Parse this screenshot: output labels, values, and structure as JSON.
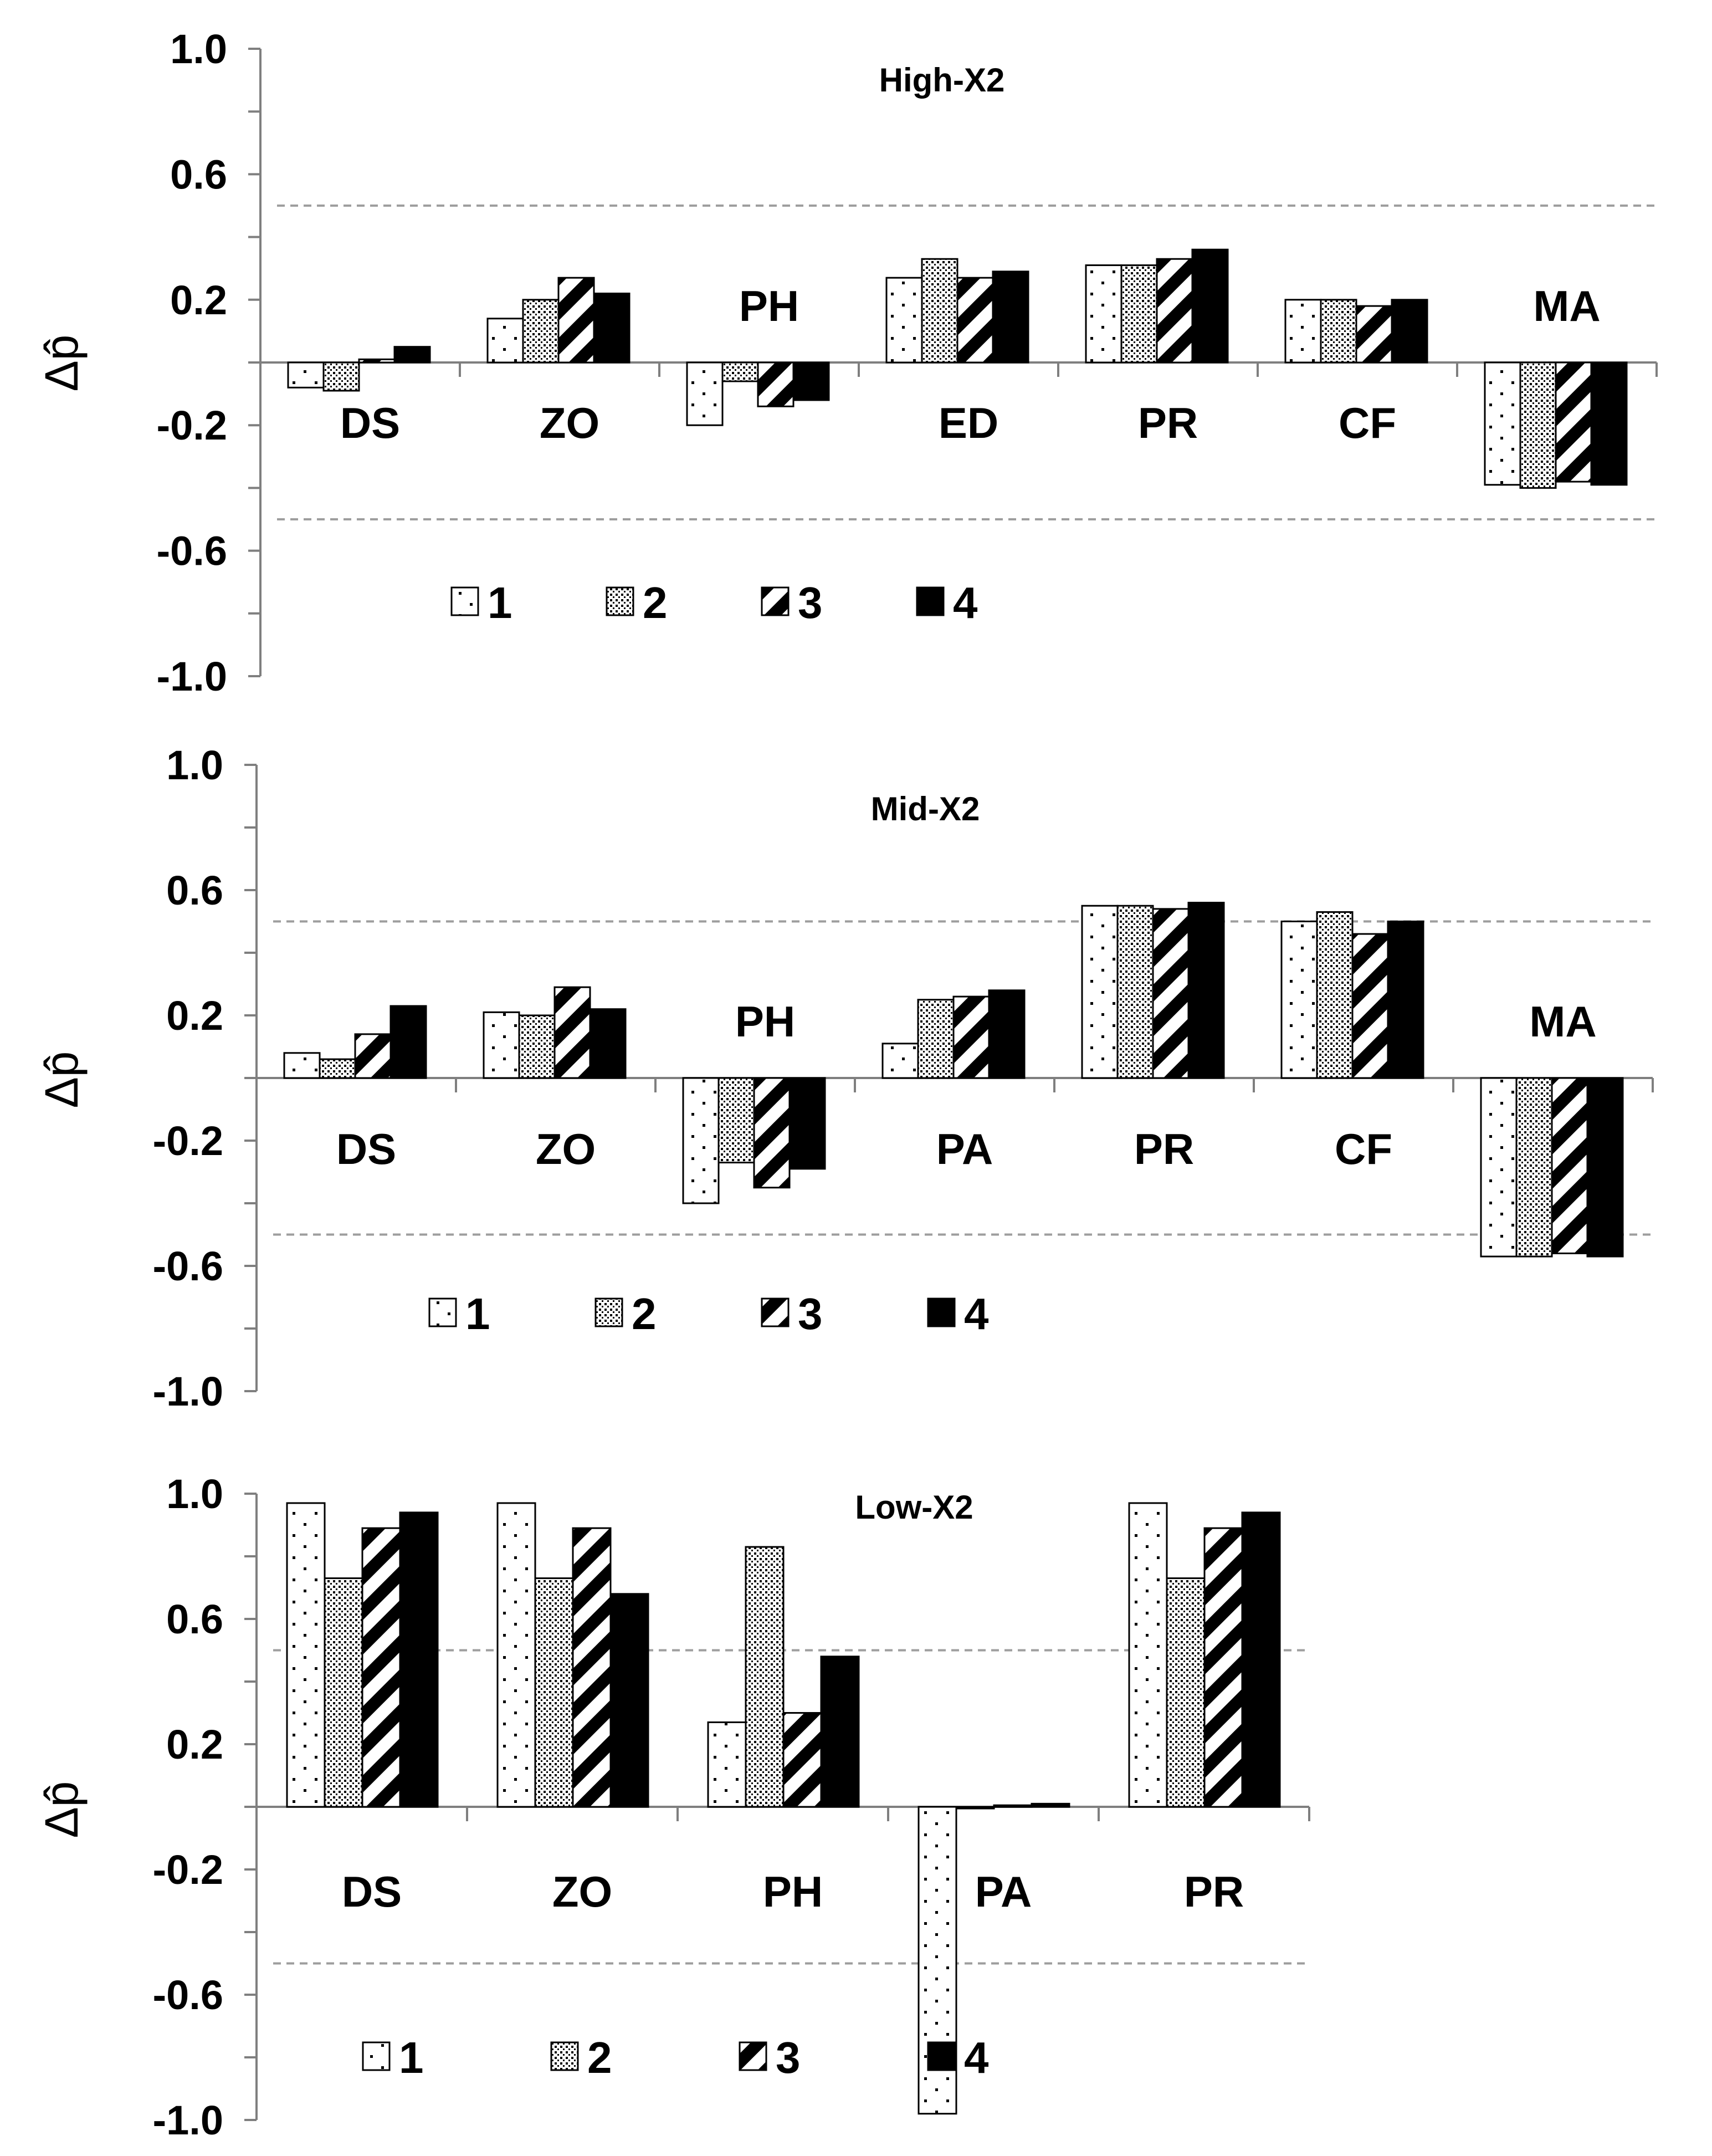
{
  "figure": {
    "ylabel": "Δp̂",
    "legend_series": [
      "1",
      "2",
      "3",
      "4"
    ],
    "colors": {
      "axis": "#7f7f7f",
      "reference_line": "#9e9e9e",
      "bar_outline": "#000000",
      "solid_fill": "#000000"
    }
  },
  "chart_data": [
    {
      "type": "bar",
      "title": "High-X2",
      "ylabel": "Δp̂",
      "ylim": [
        -1.0,
        1.0
      ],
      "yticks": [
        "1.0",
        "0.6",
        "0.2",
        "-0.2",
        "-0.6",
        "-1.0"
      ],
      "reference_lines": [
        0.5,
        -0.5
      ],
      "categories": [
        "DS",
        "ZO",
        "PH",
        "ED",
        "PR",
        "CF",
        "MA"
      ],
      "series": [
        {
          "name": "1",
          "pattern": "sparse-dots",
          "values": [
            -0.08,
            0.14,
            -0.2,
            0.27,
            0.31,
            0.2,
            -0.39
          ]
        },
        {
          "name": "2",
          "pattern": "dense-dots",
          "values": [
            -0.09,
            0.2,
            -0.06,
            0.33,
            0.31,
            0.2,
            -0.4
          ]
        },
        {
          "name": "3",
          "pattern": "diagonal-stripes",
          "values": [
            0.01,
            0.27,
            -0.14,
            0.27,
            0.33,
            0.18,
            -0.38
          ]
        },
        {
          "name": "4",
          "pattern": "solid",
          "values": [
            0.05,
            0.22,
            -0.12,
            0.29,
            0.36,
            0.2,
            -0.39
          ]
        }
      ],
      "legend": "bottom-left"
    },
    {
      "type": "bar",
      "title": "Mid-X2",
      "ylabel": "Δp̂",
      "ylim": [
        -1.0,
        1.0
      ],
      "yticks": [
        "1.0",
        "0.6",
        "0.2",
        "-0.2",
        "-0.6",
        "-1.0"
      ],
      "reference_lines": [
        0.5,
        -0.5
      ],
      "categories": [
        "DS",
        "ZO",
        "PH",
        "PA",
        "PR",
        "CF",
        "MA"
      ],
      "series": [
        {
          "name": "1",
          "pattern": "sparse-dots",
          "values": [
            0.08,
            0.21,
            -0.4,
            0.11,
            0.55,
            0.5,
            -0.57
          ]
        },
        {
          "name": "2",
          "pattern": "dense-dots",
          "values": [
            0.06,
            0.2,
            -0.27,
            0.25,
            0.55,
            0.53,
            -0.57
          ]
        },
        {
          "name": "3",
          "pattern": "diagonal-stripes",
          "values": [
            0.14,
            0.29,
            -0.35,
            0.26,
            0.54,
            0.46,
            -0.56
          ]
        },
        {
          "name": "4",
          "pattern": "solid",
          "values": [
            0.23,
            0.22,
            -0.29,
            0.28,
            0.56,
            0.5,
            -0.57
          ]
        }
      ],
      "legend": "bottom-left"
    },
    {
      "type": "bar",
      "title": "Low-X2",
      "ylabel": "Δp̂",
      "ylim": [
        -1.0,
        1.0
      ],
      "yticks": [
        "1.0",
        "0.6",
        "0.2",
        "-0.2",
        "-0.6",
        "-1.0"
      ],
      "reference_lines": [
        0.5,
        -0.5
      ],
      "categories": [
        "DS",
        "ZO",
        "PH",
        "PA",
        "PR"
      ],
      "series": [
        {
          "name": "1",
          "pattern": "sparse-dots",
          "values": [
            0.97,
            0.97,
            0.27,
            -0.98,
            0.97
          ]
        },
        {
          "name": "2",
          "pattern": "dense-dots",
          "values": [
            0.73,
            0.73,
            0.83,
            0.0,
            0.73
          ]
        },
        {
          "name": "3",
          "pattern": "diagonal-stripes",
          "values": [
            0.89,
            0.89,
            0.3,
            0.005,
            0.89
          ]
        },
        {
          "name": "4",
          "pattern": "solid",
          "values": [
            0.94,
            0.68,
            0.48,
            0.01,
            0.94
          ]
        }
      ],
      "legend": "bottom-left"
    }
  ]
}
